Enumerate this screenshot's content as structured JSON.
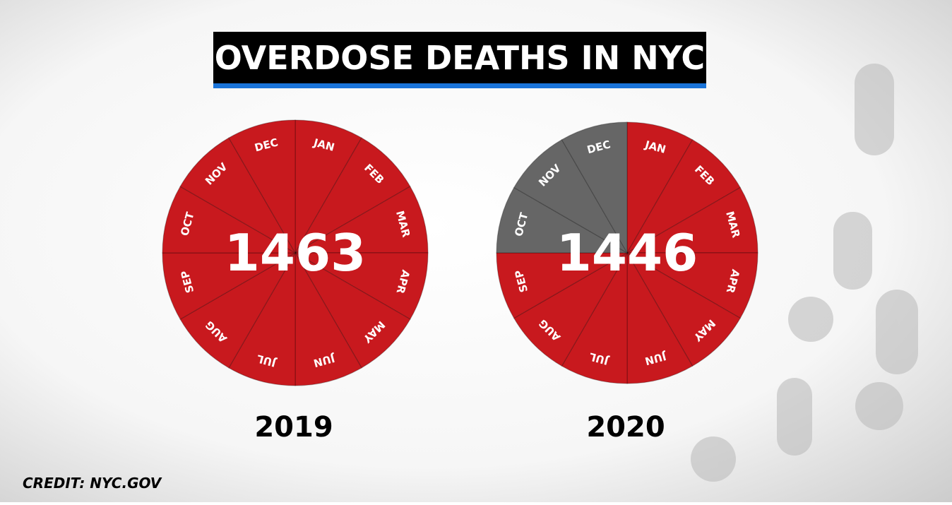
{
  "title": "OVERDOSE DEATHS IN NYC",
  "credit": "CREDIT: NYC.GOV",
  "wheels": [
    {
      "total": "1463",
      "year": "2019",
      "months": [
        {
          "label": "JAN",
          "color": "#c8191e"
        },
        {
          "label": "FEB",
          "color": "#c8191e"
        },
        {
          "label": "MAR",
          "color": "#c8191e"
        },
        {
          "label": "APR",
          "color": "#c8191e"
        },
        {
          "label": "MAY",
          "color": "#c8191e"
        },
        {
          "label": "JUN",
          "color": "#c8191e"
        },
        {
          "label": "JUL",
          "color": "#c8191e"
        },
        {
          "label": "AUG",
          "color": "#c8191e"
        },
        {
          "label": "SEP",
          "color": "#c8191e"
        },
        {
          "label": "OCT",
          "color": "#c8191e"
        },
        {
          "label": "NOV",
          "color": "#c8191e"
        },
        {
          "label": "DEC",
          "color": "#c8191e"
        }
      ]
    },
    {
      "total": "1446",
      "year": "2020",
      "months": [
        {
          "label": "JAN",
          "color": "#c8191e"
        },
        {
          "label": "FEB",
          "color": "#c8191e"
        },
        {
          "label": "MAR",
          "color": "#c8191e"
        },
        {
          "label": "APR",
          "color": "#c8191e"
        },
        {
          "label": "MAY",
          "color": "#c8191e"
        },
        {
          "label": "JUN",
          "color": "#c8191e"
        },
        {
          "label": "JUL",
          "color": "#c8191e"
        },
        {
          "label": "AUG",
          "color": "#c8191e"
        },
        {
          "label": "SEP",
          "color": "#c8191e"
        },
        {
          "label": "OCT",
          "color": "#666666"
        },
        {
          "label": "NOV",
          "color": "#666666"
        },
        {
          "label": "DEC",
          "color": "#666666"
        }
      ]
    }
  ]
}
